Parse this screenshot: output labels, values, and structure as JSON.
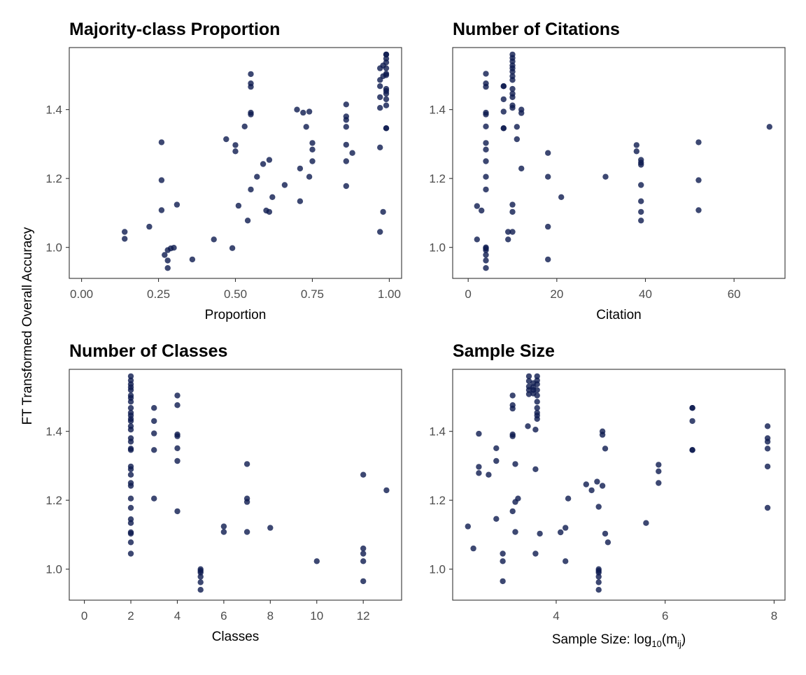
{
  "figure": {
    "shared_ylabel": "FT Transformed Overall Accuracy",
    "point_color": "#0d1a4f",
    "point_opacity": 0.8
  },
  "chart_data": [
    {
      "type": "scatter",
      "title": "Majority-class Proportion",
      "xlabel": "Proportion",
      "xlim": [
        -0.04,
        1.04
      ],
      "ylim": [
        0.91,
        1.58
      ],
      "xticks": [
        0,
        0.25,
        0.5,
        0.75,
        1
      ],
      "xtick_labels": [
        "0.00",
        "0.25",
        "0.50",
        "0.75",
        "1.00"
      ],
      "yticks": [
        1.0,
        1.2,
        1.4
      ],
      "ytick_labels": [
        "1.0",
        "1.2",
        "1.4"
      ],
      "points": [
        [
          0.14,
          1.045
        ],
        [
          0.14,
          1.025
        ],
        [
          0.22,
          1.06
        ],
        [
          0.26,
          1.305
        ],
        [
          0.26,
          1.195
        ],
        [
          0.26,
          1.108
        ],
        [
          0.27,
          0.978
        ],
        [
          0.28,
          0.992
        ],
        [
          0.28,
          0.962
        ],
        [
          0.28,
          0.94
        ],
        [
          0.29,
          0.997
        ],
        [
          0.3,
          0.999
        ],
        [
          0.31,
          1.124
        ],
        [
          0.36,
          0.965
        ],
        [
          0.43,
          1.023
        ],
        [
          0.47,
          1.314
        ],
        [
          0.49,
          0.998
        ],
        [
          0.5,
          1.297
        ],
        [
          0.5,
          1.279
        ],
        [
          0.51,
          1.121
        ],
        [
          0.53,
          1.351
        ],
        [
          0.54,
          1.078
        ],
        [
          0.55,
          1.503
        ],
        [
          0.55,
          1.476
        ],
        [
          0.55,
          1.466
        ],
        [
          0.55,
          1.391
        ],
        [
          0.55,
          1.386
        ],
        [
          0.55,
          1.168
        ],
        [
          0.57,
          1.205
        ],
        [
          0.59,
          1.242
        ],
        [
          0.6,
          1.107
        ],
        [
          0.61,
          1.254
        ],
        [
          0.61,
          1.103
        ],
        [
          0.62,
          1.146
        ],
        [
          0.66,
          1.181
        ],
        [
          0.7,
          1.4
        ],
        [
          0.71,
          1.229
        ],
        [
          0.71,
          1.134
        ],
        [
          0.72,
          1.391
        ],
        [
          0.73,
          1.35
        ],
        [
          0.74,
          1.394
        ],
        [
          0.74,
          1.205
        ],
        [
          0.75,
          1.303
        ],
        [
          0.75,
          1.284
        ],
        [
          0.75,
          1.25
        ],
        [
          0.86,
          1.415
        ],
        [
          0.86,
          1.38
        ],
        [
          0.86,
          1.37
        ],
        [
          0.86,
          1.35
        ],
        [
          0.86,
          1.298
        ],
        [
          0.86,
          1.25
        ],
        [
          0.86,
          1.178
        ],
        [
          0.88,
          1.274
        ],
        [
          0.97,
          1.52
        ],
        [
          0.97,
          1.486
        ],
        [
          0.97,
          1.468
        ],
        [
          0.97,
          1.436
        ],
        [
          0.97,
          1.405
        ],
        [
          0.97,
          1.29
        ],
        [
          0.97,
          1.045
        ],
        [
          0.98,
          1.103
        ],
        [
          0.98,
          1.497
        ],
        [
          0.98,
          1.528
        ],
        [
          0.99,
          1.56
        ],
        [
          0.99,
          1.548
        ],
        [
          0.99,
          1.537
        ],
        [
          0.99,
          1.52
        ],
        [
          0.99,
          1.504
        ],
        [
          0.99,
          1.454
        ],
        [
          0.99,
          1.446
        ],
        [
          0.99,
          1.43
        ],
        [
          0.99,
          1.412
        ],
        [
          0.99,
          1.346
        ],
        [
          0.99,
          1.346
        ],
        [
          0.99,
          1.56
        ],
        [
          0.99,
          1.5
        ],
        [
          0.99,
          1.46
        ]
      ]
    },
    {
      "type": "scatter",
      "title": "Number of Citations",
      "xlabel": "Citation",
      "xlim": [
        -3.5,
        71.5
      ],
      "ylim": [
        0.91,
        1.58
      ],
      "xticks": [
        0,
        20,
        40,
        60
      ],
      "xtick_labels": [
        "0",
        "20",
        "40",
        "60"
      ],
      "yticks": [
        1.0,
        1.2,
        1.4
      ],
      "ytick_labels": [
        "1.0",
        "1.2",
        "1.4"
      ],
      "points": [
        [
          2,
          1.12
        ],
        [
          2,
          1.023
        ],
        [
          3,
          1.107
        ],
        [
          4,
          1.504
        ],
        [
          4,
          1.476
        ],
        [
          4,
          1.466
        ],
        [
          4,
          1.391
        ],
        [
          4,
          1.386
        ],
        [
          4,
          1.351
        ],
        [
          4,
          1.303
        ],
        [
          4,
          1.284
        ],
        [
          4,
          1.25
        ],
        [
          4,
          1.205
        ],
        [
          4,
          1.168
        ],
        [
          4,
          1.0
        ],
        [
          4,
          0.997
        ],
        [
          4,
          0.992
        ],
        [
          4,
          0.978
        ],
        [
          4,
          0.962
        ],
        [
          4,
          0.94
        ],
        [
          8,
          1.468
        ],
        [
          8,
          1.468
        ],
        [
          8,
          1.43
        ],
        [
          8,
          1.394
        ],
        [
          8,
          1.346
        ],
        [
          8,
          1.346
        ],
        [
          9,
          1.045
        ],
        [
          9,
          1.023
        ],
        [
          10,
          1.56
        ],
        [
          10,
          1.55
        ],
        [
          10,
          1.54
        ],
        [
          10,
          1.528
        ],
        [
          10,
          1.52
        ],
        [
          10,
          1.51
        ],
        [
          10,
          1.497
        ],
        [
          10,
          1.486
        ],
        [
          10,
          1.46
        ],
        [
          10,
          1.446
        ],
        [
          10,
          1.436
        ],
        [
          10,
          1.412
        ],
        [
          10,
          1.405
        ],
        [
          10,
          1.124
        ],
        [
          10,
          1.103
        ],
        [
          10,
          1.045
        ],
        [
          11,
          1.35
        ],
        [
          11,
          1.314
        ],
        [
          12,
          1.4
        ],
        [
          12,
          1.39
        ],
        [
          12,
          1.229
        ],
        [
          18,
          1.274
        ],
        [
          18,
          1.205
        ],
        [
          18,
          1.06
        ],
        [
          18,
          0.965
        ],
        [
          21,
          1.146
        ],
        [
          31,
          1.205
        ],
        [
          38,
          1.297
        ],
        [
          38,
          1.279
        ],
        [
          39,
          1.254
        ],
        [
          39,
          1.246
        ],
        [
          39,
          1.24
        ],
        [
          39,
          1.181
        ],
        [
          39,
          1.134
        ],
        [
          39,
          1.103
        ],
        [
          39,
          1.078
        ],
        [
          52,
          1.305
        ],
        [
          52,
          1.195
        ],
        [
          52,
          1.108
        ],
        [
          68,
          1.35
        ]
      ]
    },
    {
      "type": "scatter",
      "title": "Number of Classes",
      "xlabel": "Classes",
      "xlim": [
        -0.65,
        13.65
      ],
      "ylim": [
        0.91,
        1.58
      ],
      "xticks": [
        0,
        2,
        4,
        6,
        8,
        10,
        12
      ],
      "xtick_labels": [
        "0",
        "2",
        "4",
        "6",
        "8",
        "10",
        "12"
      ],
      "yticks": [
        1.0,
        1.2,
        1.4
      ],
      "ytick_labels": [
        "1.0",
        "1.2",
        "1.4"
      ],
      "points": [
        [
          2,
          1.56
        ],
        [
          2,
          1.548
        ],
        [
          2,
          1.537
        ],
        [
          2,
          1.528
        ],
        [
          2,
          1.52
        ],
        [
          2,
          1.504
        ],
        [
          2,
          1.497
        ],
        [
          2,
          1.486
        ],
        [
          2,
          1.468
        ],
        [
          2,
          1.454
        ],
        [
          2,
          1.446
        ],
        [
          2,
          1.436
        ],
        [
          2,
          1.43
        ],
        [
          2,
          1.415
        ],
        [
          2,
          1.405
        ],
        [
          2,
          1.38
        ],
        [
          2,
          1.37
        ],
        [
          2,
          1.35
        ],
        [
          2,
          1.346
        ],
        [
          2,
          1.298
        ],
        [
          2,
          1.29
        ],
        [
          2,
          1.274
        ],
        [
          2,
          1.25
        ],
        [
          2,
          1.242
        ],
        [
          2,
          1.205
        ],
        [
          2,
          1.178
        ],
        [
          2,
          1.145
        ],
        [
          2,
          1.134
        ],
        [
          2,
          1.107
        ],
        [
          2,
          1.103
        ],
        [
          2,
          1.078
        ],
        [
          2,
          1.045
        ],
        [
          3,
          1.468
        ],
        [
          3,
          1.43
        ],
        [
          3,
          1.394
        ],
        [
          3,
          1.346
        ],
        [
          3,
          1.205
        ],
        [
          4,
          1.504
        ],
        [
          4,
          1.476
        ],
        [
          4,
          1.391
        ],
        [
          4,
          1.386
        ],
        [
          4,
          1.351
        ],
        [
          4,
          1.314
        ],
        [
          4,
          1.168
        ],
        [
          5,
          1.0
        ],
        [
          5,
          0.995
        ],
        [
          5,
          0.99
        ],
        [
          5,
          0.978
        ],
        [
          5,
          0.962
        ],
        [
          5,
          0.94
        ],
        [
          6,
          1.124
        ],
        [
          6,
          1.108
        ],
        [
          7,
          1.305
        ],
        [
          7,
          1.205
        ],
        [
          7,
          1.195
        ],
        [
          7,
          1.108
        ],
        [
          8,
          1.12
        ],
        [
          10,
          1.023
        ],
        [
          12,
          1.274
        ],
        [
          12,
          1.06
        ],
        [
          12,
          1.045
        ],
        [
          12,
          1.023
        ],
        [
          12,
          0.965
        ],
        [
          13,
          1.229
        ]
      ]
    },
    {
      "type": "scatter",
      "title": "Sample Size",
      "xlabel": "Sample Size: log10(mij)",
      "xlabel_parts": {
        "prefix": "Sample Size: log",
        "base": "10",
        "open": "(m",
        "sub": "ij",
        "close": ")"
      },
      "xlim": [
        2.1,
        8.2
      ],
      "ylim": [
        0.91,
        1.58
      ],
      "xticks": [
        4,
        6,
        8
      ],
      "xtick_labels": [
        "4",
        "6",
        "8"
      ],
      "yticks": [
        1.0,
        1.2,
        1.4
      ],
      "ytick_labels": [
        "1.0",
        "1.2",
        "1.4"
      ],
      "points": [
        [
          2.38,
          1.124
        ],
        [
          2.48,
          1.06
        ],
        [
          2.58,
          1.393
        ],
        [
          2.58,
          1.297
        ],
        [
          2.58,
          1.279
        ],
        [
          2.76,
          1.274
        ],
        [
          2.9,
          1.351
        ],
        [
          2.9,
          1.314
        ],
        [
          2.9,
          1.146
        ],
        [
          3.02,
          1.045
        ],
        [
          3.02,
          1.023
        ],
        [
          3.02,
          0.965
        ],
        [
          3.2,
          1.504
        ],
        [
          3.2,
          1.476
        ],
        [
          3.2,
          1.466
        ],
        [
          3.2,
          1.391
        ],
        [
          3.2,
          1.386
        ],
        [
          3.2,
          1.168
        ],
        [
          3.25,
          1.305
        ],
        [
          3.25,
          1.195
        ],
        [
          3.25,
          1.108
        ],
        [
          3.3,
          1.205
        ],
        [
          3.48,
          1.415
        ],
        [
          3.5,
          1.56
        ],
        [
          3.5,
          1.546
        ],
        [
          3.5,
          1.53
        ],
        [
          3.5,
          1.52
        ],
        [
          3.5,
          1.508
        ],
        [
          3.58,
          1.54
        ],
        [
          3.58,
          1.528
        ],
        [
          3.58,
          1.52
        ],
        [
          3.58,
          1.51
        ],
        [
          3.62,
          1.405
        ],
        [
          3.62,
          1.29
        ],
        [
          3.62,
          1.045
        ],
        [
          3.65,
          1.56
        ],
        [
          3.65,
          1.548
        ],
        [
          3.65,
          1.537
        ],
        [
          3.65,
          1.52
        ],
        [
          3.65,
          1.504
        ],
        [
          3.65,
          1.486
        ],
        [
          3.65,
          1.468
        ],
        [
          3.65,
          1.454
        ],
        [
          3.65,
          1.446
        ],
        [
          3.65,
          1.436
        ],
        [
          3.7,
          1.103
        ],
        [
          4.08,
          1.107
        ],
        [
          4.17,
          1.12
        ],
        [
          4.17,
          1.023
        ],
        [
          4.22,
          1.205
        ],
        [
          4.55,
          1.246
        ],
        [
          4.65,
          1.229
        ],
        [
          4.75,
          1.254
        ],
        [
          4.78,
          1.181
        ],
        [
          4.78,
          1.0
        ],
        [
          4.78,
          0.995
        ],
        [
          4.78,
          0.99
        ],
        [
          4.78,
          0.978
        ],
        [
          4.78,
          0.962
        ],
        [
          4.78,
          0.94
        ],
        [
          4.85,
          1.4
        ],
        [
          4.85,
          1.39
        ],
        [
          4.85,
          1.242
        ],
        [
          4.9,
          1.35
        ],
        [
          4.9,
          1.103
        ],
        [
          4.95,
          1.078
        ],
        [
          5.65,
          1.134
        ],
        [
          5.88,
          1.303
        ],
        [
          5.88,
          1.284
        ],
        [
          5.88,
          1.25
        ],
        [
          6.5,
          1.468
        ],
        [
          6.5,
          1.468
        ],
        [
          6.5,
          1.43
        ],
        [
          6.5,
          1.346
        ],
        [
          6.5,
          1.346
        ],
        [
          7.88,
          1.415
        ],
        [
          7.88,
          1.38
        ],
        [
          7.88,
          1.37
        ],
        [
          7.88,
          1.35
        ],
        [
          7.88,
          1.298
        ],
        [
          7.88,
          1.178
        ]
      ]
    }
  ]
}
